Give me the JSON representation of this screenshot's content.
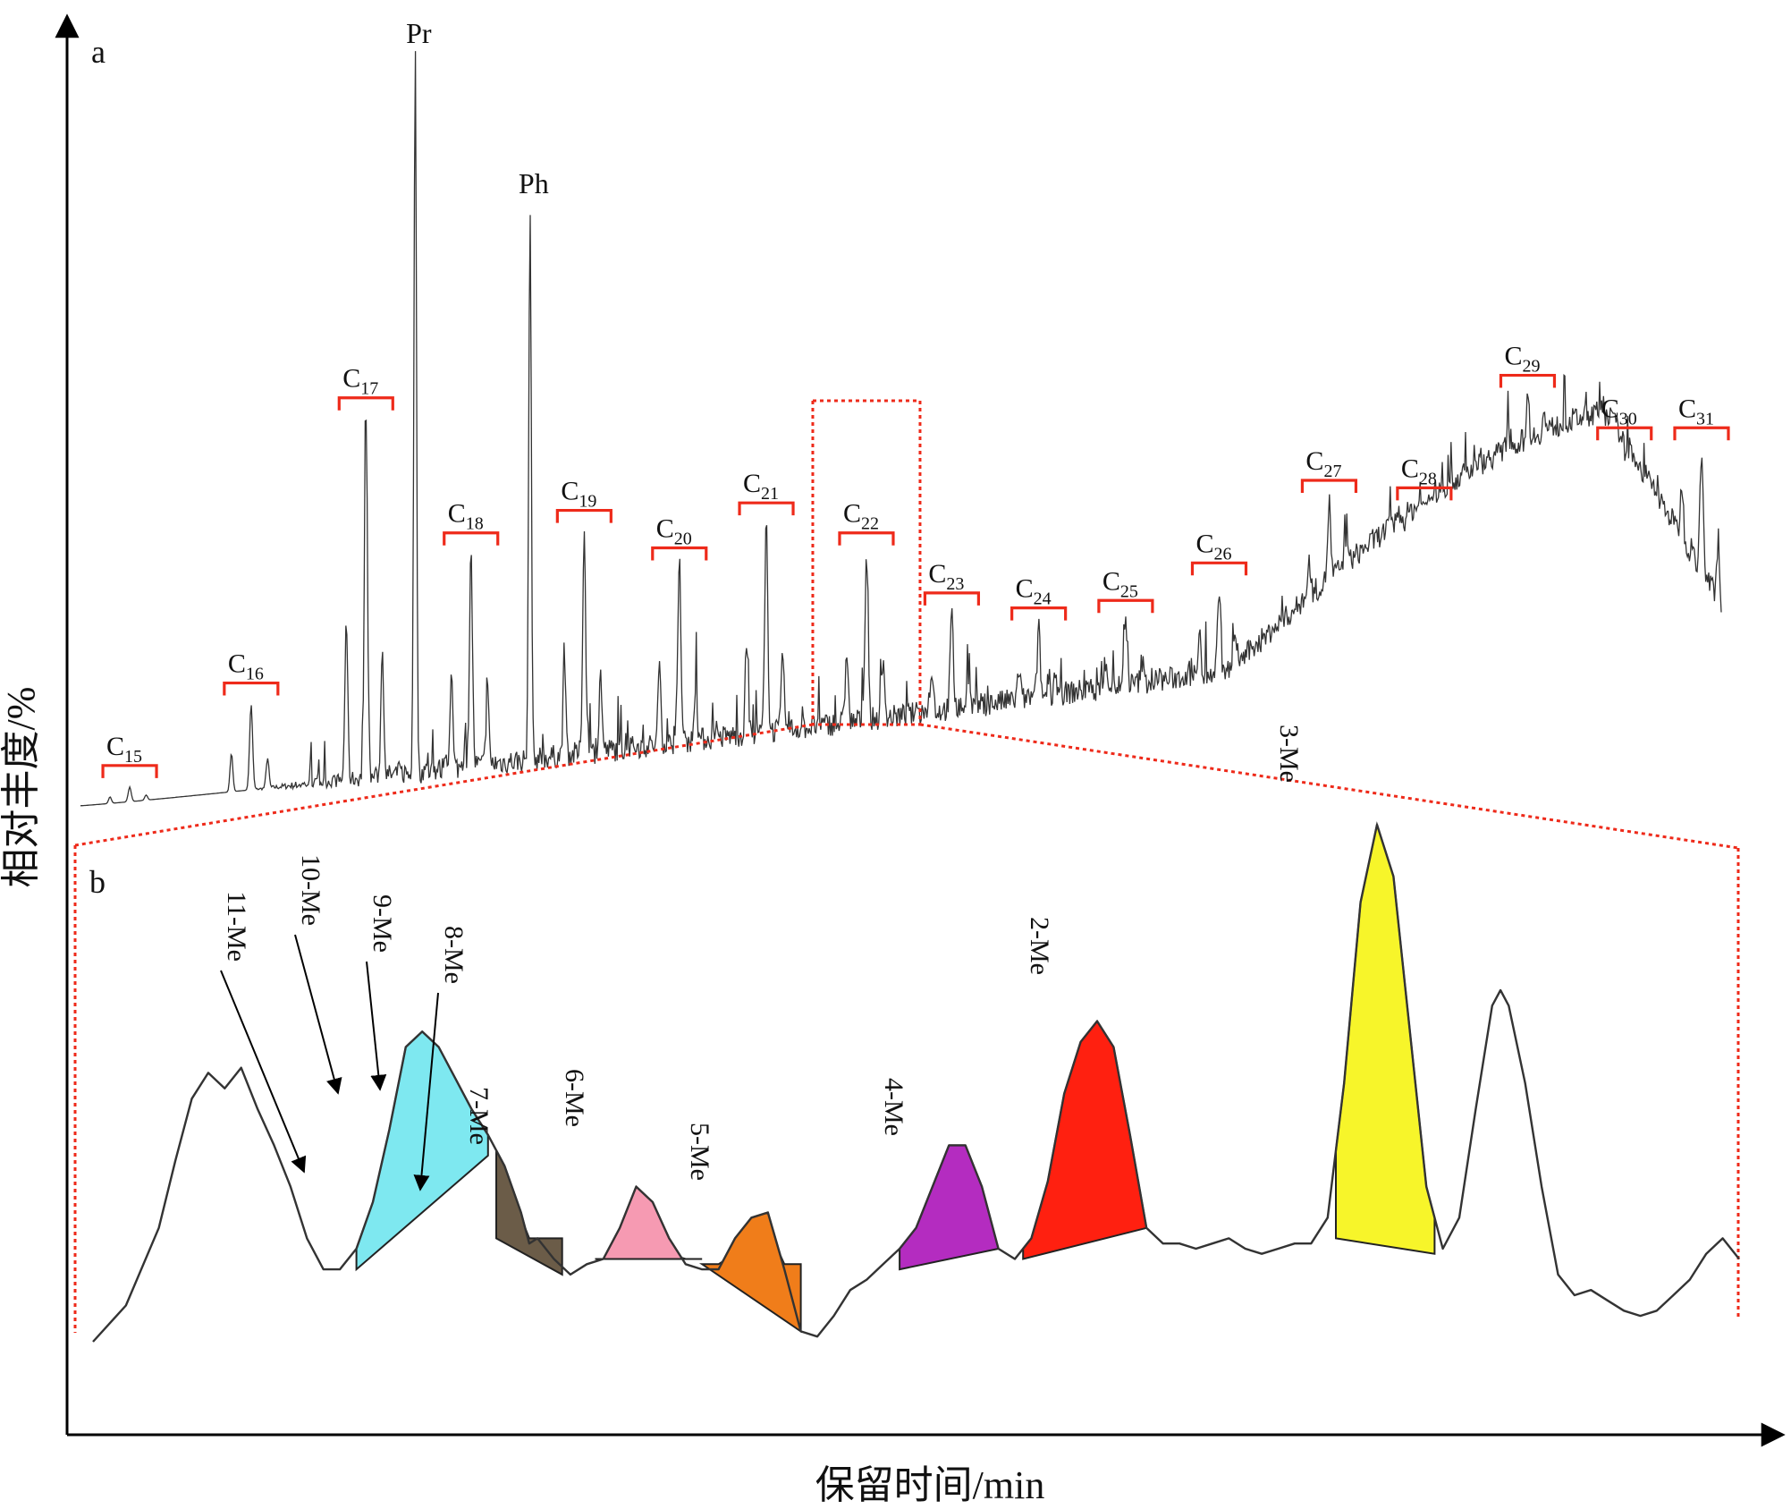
{
  "figure": {
    "ylabel": "相对丰度/%",
    "xlabel": "保留时间/min",
    "panel_a_label": "a",
    "panel_b_label": "b"
  },
  "colors": {
    "trace": "#333333",
    "bracket": "#ee2a1a",
    "zoom": "#ee2a1a",
    "axis": "#000000"
  },
  "chart_data": [
    {
      "type": "line",
      "panel": "a",
      "notes": "Gas chromatogram; intensities are relative abundance on an unlabeled scale (0-100).",
      "peaks": [
        {
          "label": "Pr",
          "x": 0.204,
          "y": 100
        },
        {
          "label": "Ph",
          "x": 0.274,
          "y": 80
        }
      ],
      "carbon_groups": [
        {
          "base": "C",
          "sub": "15",
          "x": 0.03,
          "y": 3
        },
        {
          "base": "C",
          "sub": "16",
          "x": 0.104,
          "y": 14
        },
        {
          "base": "C",
          "sub": "17",
          "x": 0.174,
          "y": 52
        },
        {
          "base": "C",
          "sub": "18",
          "x": 0.238,
          "y": 34
        },
        {
          "base": "C",
          "sub": "19",
          "x": 0.307,
          "y": 37
        },
        {
          "base": "C",
          "sub": "20",
          "x": 0.365,
          "y": 32
        },
        {
          "base": "C",
          "sub": "21",
          "x": 0.418,
          "y": 38
        },
        {
          "base": "C",
          "sub": "22",
          "x": 0.479,
          "y": 34
        },
        {
          "base": "C",
          "sub": "23",
          "x": 0.531,
          "y": 26
        },
        {
          "base": "C",
          "sub": "24",
          "x": 0.584,
          "y": 24
        },
        {
          "base": "C",
          "sub": "25",
          "x": 0.637,
          "y": 25
        },
        {
          "base": "C",
          "sub": "26",
          "x": 0.694,
          "y": 30
        },
        {
          "base": "C",
          "sub": "27",
          "x": 0.761,
          "y": 41
        },
        {
          "base": "C",
          "sub": "28",
          "x": 0.819,
          "y": 40
        },
        {
          "base": "C",
          "sub": "29",
          "x": 0.882,
          "y": 55
        },
        {
          "base": "C",
          "sub": "30",
          "x": 0.941,
          "y": 48
        },
        {
          "base": "C",
          "sub": "31",
          "x": 0.988,
          "y": 48
        }
      ]
    },
    {
      "type": "area",
      "panel": "b",
      "notes": "Expanded view of the C22 region; methyl-alkane isomer peaks filled by color.",
      "peaks": [
        {
          "label": "11-Me",
          "x": 0.14,
          "y": 53,
          "color": null
        },
        {
          "label": "10-Me",
          "x": 0.19,
          "y": 60,
          "color": "#7ee8f0"
        },
        {
          "label": "9-Me",
          "x": 0.21,
          "y": 60,
          "color": "#7ee8f0"
        },
        {
          "label": "8-Me",
          "x": 0.25,
          "y": 38,
          "color": null
        },
        {
          "label": "7-Me",
          "x": 0.27,
          "y": 19,
          "color": "#6b5c48"
        },
        {
          "label": "6-Me",
          "x": 0.33,
          "y": 32,
          "color": "#f69ab2"
        },
        {
          "label": "5-Me",
          "x": 0.41,
          "y": 25,
          "color": "#f07d1a"
        },
        {
          "label": "4-Me",
          "x": 0.53,
          "y": 38,
          "color": "#b42cc0"
        },
        {
          "label": "2-Me",
          "x": 0.63,
          "y": 62,
          "color": "#ff2010"
        },
        {
          "label": "3-Me",
          "x": 0.78,
          "y": 100,
          "color": "#f7f52a"
        }
      ]
    }
  ]
}
